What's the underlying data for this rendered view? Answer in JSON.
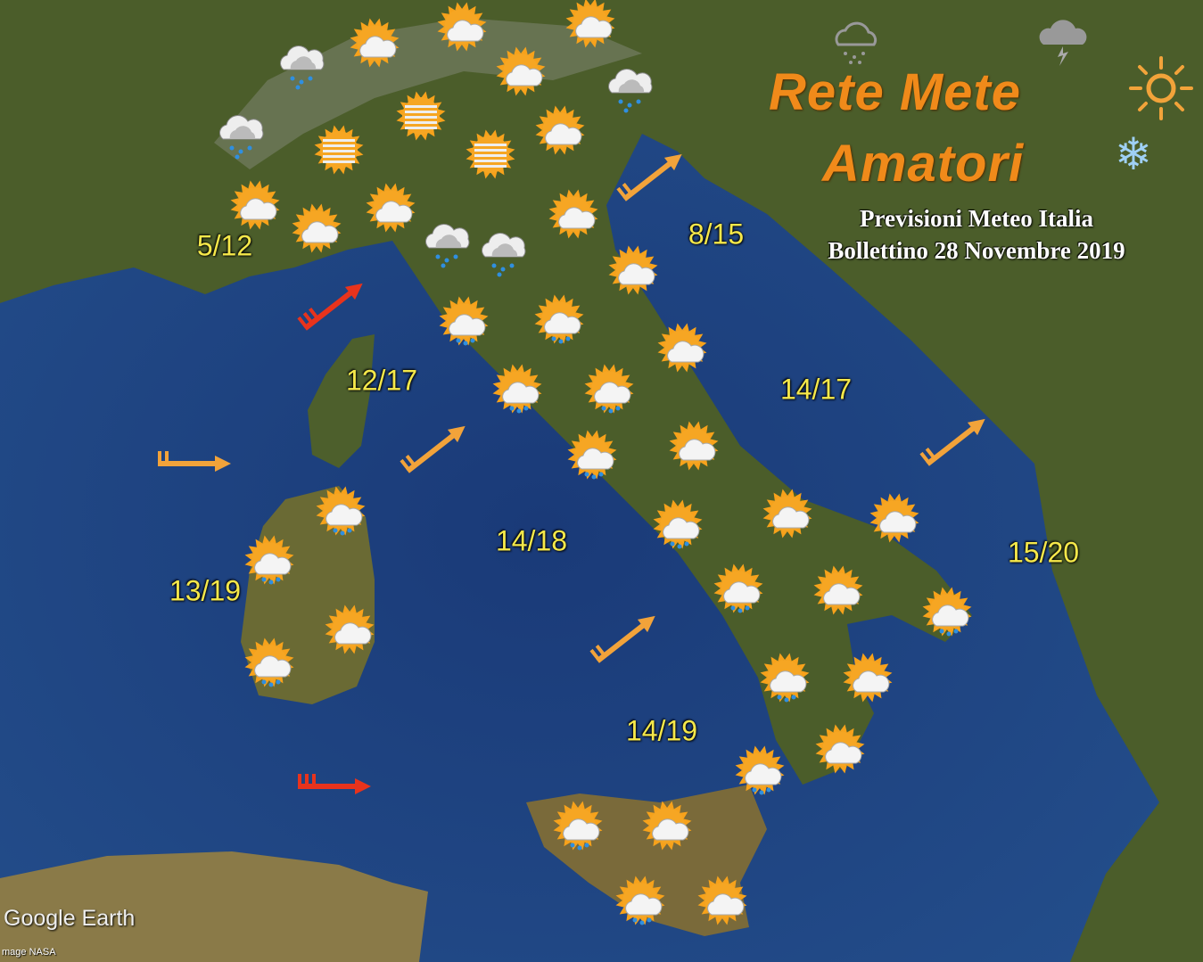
{
  "header": {
    "logo_line1": "Rete Mete",
    "logo_line2": "Amatori",
    "title": "Previsioni Meteo Italia",
    "subtitle": "Bollettino 28 Novembre 2019"
  },
  "colors": {
    "sea": "#1d3f7a",
    "land": "#4d5f2c",
    "logo": "#f08a1a",
    "temperature_text": "#f5e84a",
    "wind_strong": "#e8331c",
    "wind_moderate": "#f2a33a"
  },
  "temperatures": [
    "5/12",
    "8/15",
    "12/17",
    "14/17",
    "14/18",
    "15/20",
    "13/19",
    "14/19"
  ],
  "weather_icons": [
    "cloud-rain",
    "sun-cloud",
    "sun-cloud",
    "sun-cloud",
    "sun-cloud",
    "cloud-rain",
    "cloud-rain",
    "fog",
    "fog",
    "fog",
    "sun-cloud",
    "sun-cloud",
    "sun-cloud",
    "sun-cloud",
    "cloud-rain",
    "cloud-rain",
    "sun-cloud",
    "sun-cloud",
    "sun-cloud-rain",
    "sun-cloud-rain",
    "sun-cloud",
    "sun-cloud-rain",
    "sun-cloud-rain",
    "sun-cloud-rain",
    "sun-cloud",
    "sun-cloud-rain",
    "sun-cloud-rain",
    "sun-cloud",
    "sun-cloud-rain",
    "sun-cloud-rain",
    "sun-cloud",
    "sun-cloud",
    "sun-cloud-rain",
    "sun-cloud",
    "sun-cloud-rain",
    "sun-cloud-rain",
    "sun-cloud",
    "sun-cloud",
    "sun-cloud-rain",
    "sun-cloud-rain",
    "sun-cloud",
    "sun-cloud-rain",
    "sun-cloud"
  ],
  "wind_arrows": [
    {
      "strength": "strong",
      "direction": "NE"
    },
    {
      "strength": "moderate",
      "direction": "E"
    },
    {
      "strength": "moderate",
      "direction": "NE"
    },
    {
      "strength": "moderate",
      "direction": "NE"
    },
    {
      "strength": "moderate",
      "direction": "NE"
    },
    {
      "strength": "moderate",
      "direction": "NE"
    },
    {
      "strength": "strong",
      "direction": "E"
    }
  ],
  "footer": {
    "brand": "Google Earth",
    "credit": "mage NASA"
  }
}
